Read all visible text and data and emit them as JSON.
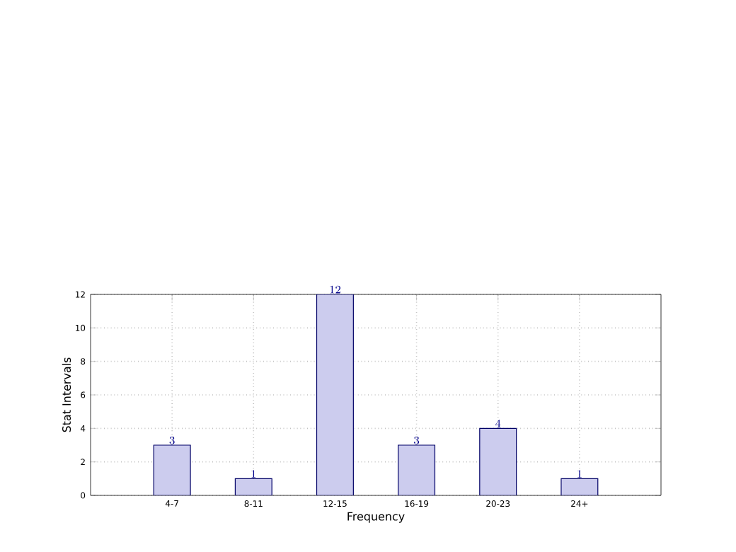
{
  "chart_data": {
    "type": "bar",
    "xlabel": "Frequency",
    "ylabel": "Stat Intervals",
    "categories": [
      "4-7",
      "8-11",
      "12-15",
      "16-19",
      "20-23",
      "24+"
    ],
    "values": [
      3,
      1,
      12,
      3,
      4,
      1
    ],
    "color": "#ccccee",
    "ylim": [
      0,
      12
    ],
    "yticks": [
      0,
      2,
      4,
      6,
      8,
      10,
      12
    ],
    "grid": true,
    "data_labels": true
  }
}
